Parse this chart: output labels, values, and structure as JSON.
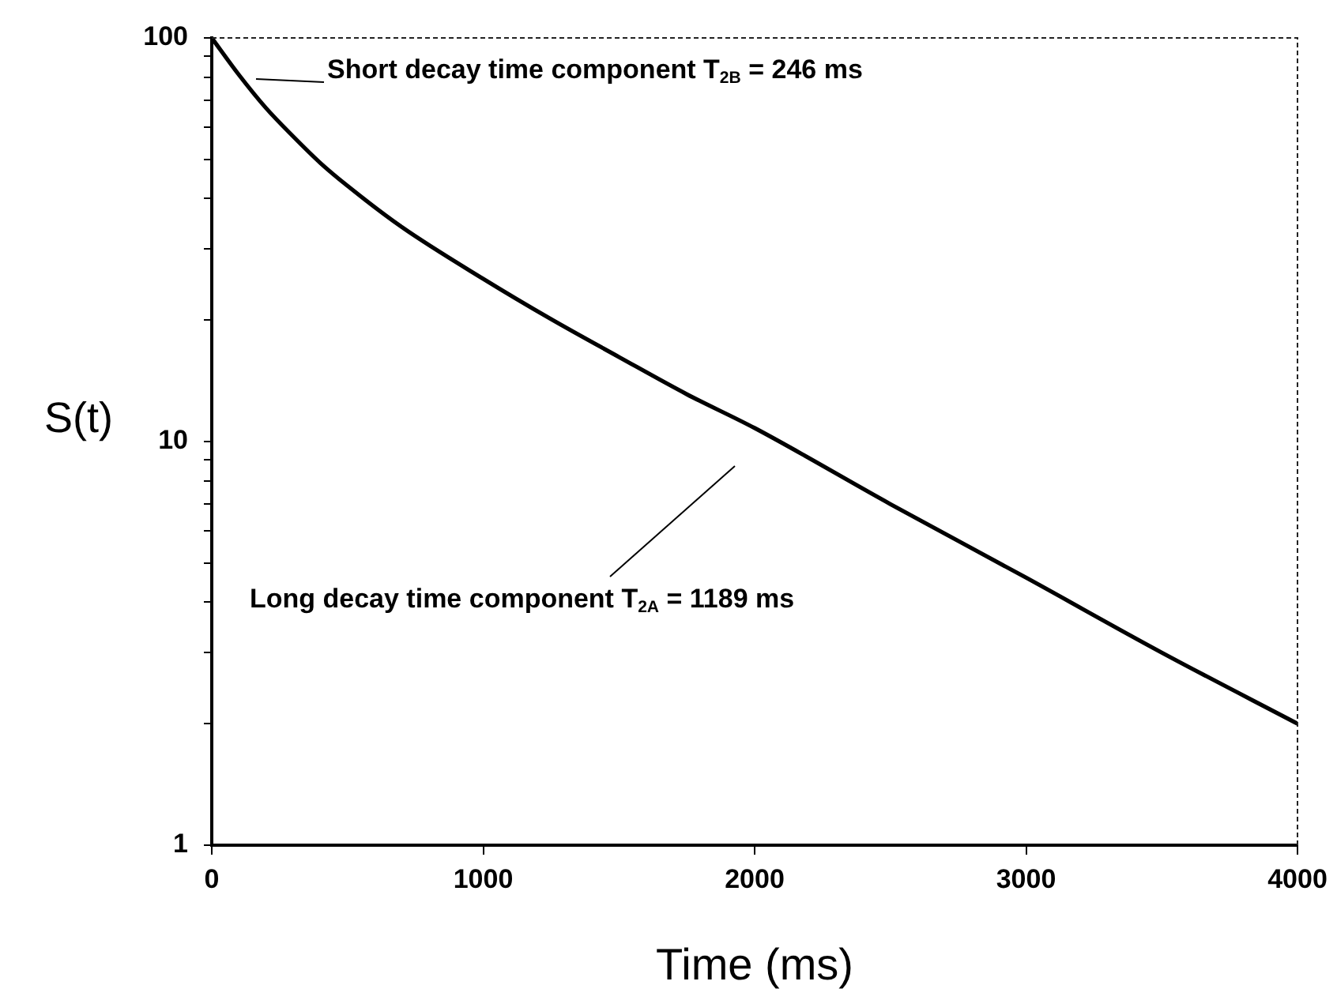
{
  "chart_data": {
    "type": "line",
    "xlabel": "Time (ms)",
    "ylabel": "S(t)",
    "log": "y",
    "xlim": [
      0,
      4000
    ],
    "xticks": [
      0,
      1000,
      2000,
      3000,
      4000
    ],
    "ylim": [
      1,
      100
    ],
    "yticks": [
      1,
      {
        "value": 2,
        "label": null
      },
      {
        "value": 3,
        "label": null
      },
      {
        "value": 4,
        "label": null
      },
      {
        "value": 5,
        "label": null
      },
      {
        "value": 6,
        "label": null
      },
      {
        "value": 7,
        "label": null
      },
      {
        "value": 8,
        "label": null
      },
      {
        "value": 9,
        "label": null
      },
      10,
      {
        "value": 20,
        "label": null
      },
      {
        "value": 30,
        "label": null
      },
      {
        "value": 40,
        "label": null
      },
      {
        "value": 50,
        "label": null
      },
      {
        "value": 60,
        "label": null
      },
      {
        "value": 70,
        "label": null
      },
      {
        "value": 80,
        "label": null
      },
      {
        "value": 90,
        "label": null
      },
      100
    ],
    "grid": false,
    "legend": false,
    "x": [
      0,
      100,
      200,
      300,
      400,
      500,
      700,
      1000,
      1250,
      1500,
      1750,
      2000,
      2500,
      3000,
      3500,
      4000
    ],
    "series": [
      {
        "color": "#000000",
        "values": [
          100,
          81,
          67,
          57,
          49,
          43,
          34,
          25.3,
          20.1,
          16.2,
          13.1,
          10.8,
          7.0,
          4.6,
          3.0,
          2.0
        ]
      }
    ],
    "annotations": [
      "Short decay time component T$_{2B}$ = 246 ms",
      "Long decay time component T$_{2A}$ = 1189 ms"
    ]
  }
}
